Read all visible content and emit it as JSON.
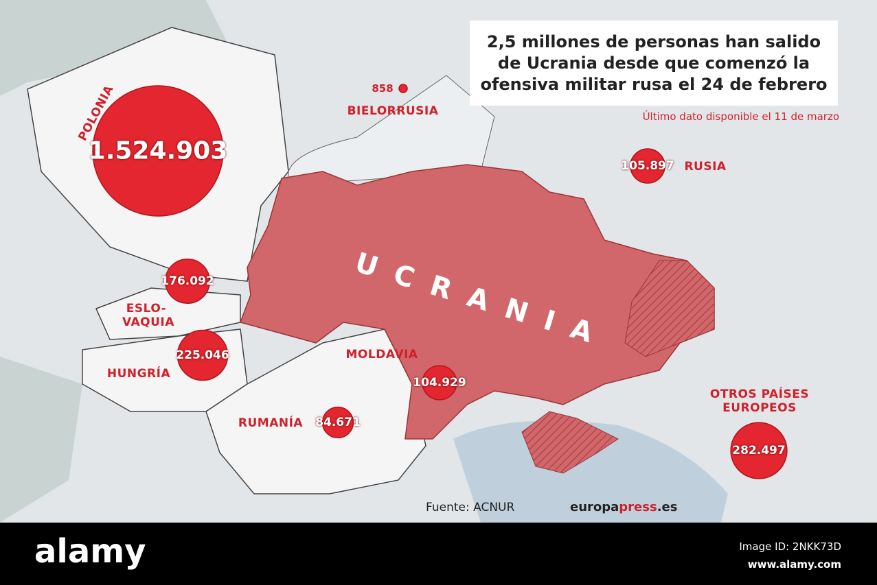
{
  "title": "2,5 millones de personas han salido de Ucrania desde que comenzó la ofensiva militar rusa el 24 de febrero",
  "subtitle": "Último dato disponible el 11 de marzo",
  "main_label": "UCRANIA",
  "countries": [
    {
      "name": "POLONIA",
      "value": 1524903,
      "value_label": "1.524.903"
    },
    {
      "name": "BIELORRUSIA",
      "value": 858
    },
    {
      "name": "RUSIA",
      "value": 105897,
      "value_label": "105.897"
    },
    {
      "name": "ESLO-VAQUIA",
      "value": 176092,
      "value_label": "176.092"
    },
    {
      "name": "HUNGRÍA",
      "value": 225046,
      "value_label": "225.046"
    },
    {
      "name": "MOLDAVIA",
      "value": 104929,
      "value_label": "104.929"
    },
    {
      "name": "RUMANÍA",
      "value": 84671,
      "value_label": "84.671"
    },
    {
      "name": "OTROS PAÍSES EUROPEOS",
      "value": 282497,
      "value_label": "282.497"
    }
  ],
  "source": "Fuente: ACNUR",
  "brand": {
    "plain": "europa",
    "bold": "press",
    "suffix": ".es"
  },
  "watermark": {
    "logo": "alamy",
    "image_id": "Image ID: 2NKK73D",
    "url": "www.alamy.com"
  }
}
